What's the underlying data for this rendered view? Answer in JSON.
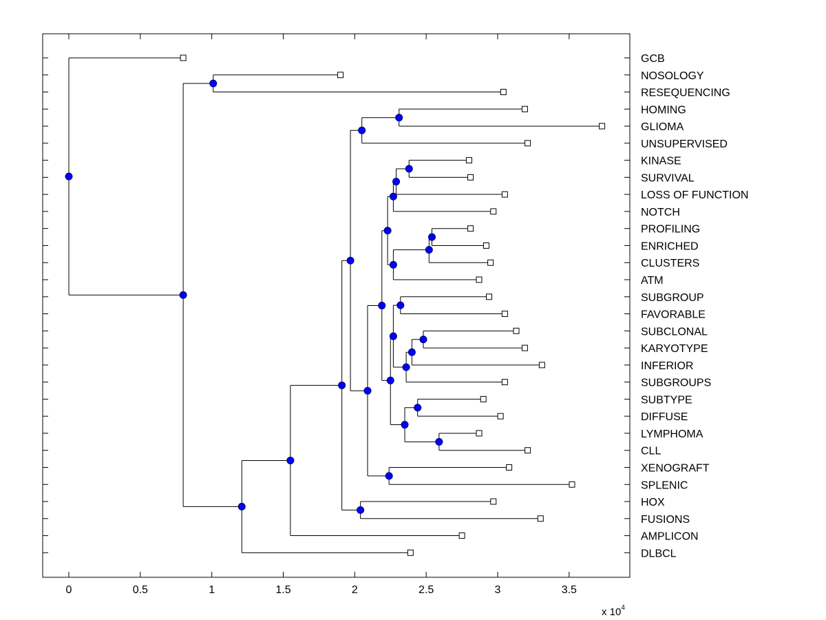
{
  "chart_data": {
    "type": "dendrogram",
    "orientation": "horizontal",
    "x_axis": {
      "ticks": [
        0,
        0.5,
        1,
        1.5,
        2,
        2.5,
        3,
        3.5
      ],
      "tick_labels": [
        "0",
        "0.5",
        "1",
        "1.5",
        "2",
        "2.5",
        "3",
        "3.5"
      ],
      "range": [
        -0.18,
        3.91
      ],
      "multiplier_label": "x 10",
      "multiplier_exponent": "4"
    },
    "leaves": [
      {
        "label": "GCB",
        "x": 0.8
      },
      {
        "label": "NOSOLOGY",
        "x": 1.9
      },
      {
        "label": "RESEQUENCING",
        "x": 3.04
      },
      {
        "label": "HOMING",
        "x": 3.19
      },
      {
        "label": "GLIOMA",
        "x": 3.73
      },
      {
        "label": "UNSUPERVISED",
        "x": 3.21
      },
      {
        "label": "KINASE",
        "x": 2.8
      },
      {
        "label": "SURVIVAL",
        "x": 2.81
      },
      {
        "label": "LOSS OF FUNCTION",
        "x": 3.05
      },
      {
        "label": "NOTCH",
        "x": 2.97
      },
      {
        "label": "PROFILING",
        "x": 2.81
      },
      {
        "label": "ENRICHED",
        "x": 2.92
      },
      {
        "label": "CLUSTERS",
        "x": 2.95
      },
      {
        "label": "ATM",
        "x": 2.87
      },
      {
        "label": "SUBGROUP",
        "x": 2.94
      },
      {
        "label": "FAVORABLE",
        "x": 3.05
      },
      {
        "label": "SUBCLONAL",
        "x": 3.13
      },
      {
        "label": "KARYOTYPE",
        "x": 3.19
      },
      {
        "label": "INFERIOR",
        "x": 3.31
      },
      {
        "label": "SUBGROUPS",
        "x": 3.05
      },
      {
        "label": "SUBTYPE",
        "x": 2.9
      },
      {
        "label": "DIFFUSE",
        "x": 3.02
      },
      {
        "label": "LYMPHOMA",
        "x": 2.87
      },
      {
        "label": "CLL",
        "x": 3.21
      },
      {
        "label": "XENOGRAFT",
        "x": 3.08
      },
      {
        "label": "SPLENIC",
        "x": 3.52
      },
      {
        "label": "HOX",
        "x": 2.97
      },
      {
        "label": "FUSIONS",
        "x": 3.3
      },
      {
        "label": "AMPLICON",
        "x": 2.75
      },
      {
        "label": "DLBCL",
        "x": 2.39
      }
    ],
    "nodes": [
      {
        "id": "N_pk",
        "x": 2.54,
        "children": [
          "PROFILING",
          "ENRICHED"
        ]
      },
      {
        "id": "N_ks",
        "x": 2.38,
        "children": [
          "KINASE",
          "SURVIVAL"
        ]
      },
      {
        "id": "N_hg",
        "x": 2.31,
        "children": [
          "HOMING",
          "GLIOMA"
        ]
      },
      {
        "id": "N_nr",
        "x": 1.01,
        "children": [
          "NOSOLOGY",
          "RESEQUENCING"
        ]
      },
      {
        "id": "N_sk",
        "x": 2.48,
        "children": [
          "SUBCLONAL",
          "KARYOTYPE"
        ]
      },
      {
        "id": "N_sd",
        "x": 2.44,
        "children": [
          "SUBTYPE",
          "DIFFUSE"
        ]
      },
      {
        "id": "N_lc",
        "x": 2.59,
        "children": [
          "LYMPHOMA",
          "CLL"
        ]
      },
      {
        "id": "N_pec",
        "x": 2.52,
        "children": [
          "N_pk",
          "CLUSTERS"
        ]
      },
      {
        "id": "N_ksl",
        "x": 2.29,
        "children": [
          "N_ks",
          "LOSS OF FUNCTION"
        ]
      },
      {
        "id": "N_ski",
        "x": 2.4,
        "children": [
          "N_sk",
          "INFERIOR"
        ]
      },
      {
        "id": "N_ksln",
        "x": 2.27,
        "children": [
          "N_ksl",
          "NOTCH"
        ]
      },
      {
        "id": "N_peca",
        "x": 2.27,
        "children": [
          "N_pec",
          "ATM"
        ]
      },
      {
        "id": "N_sf",
        "x": 2.32,
        "children": [
          "SUBGROUP",
          "FAVORABLE"
        ]
      },
      {
        "id": "N_skis",
        "x": 2.36,
        "children": [
          "N_ski",
          "SUBGROUPS"
        ]
      },
      {
        "id": "N_sdlc",
        "x": 2.35,
        "children": [
          "N_sd",
          "N_lc"
        ]
      },
      {
        "id": "N_sfsk",
        "x": 2.27,
        "children": [
          "N_sf",
          "N_skis"
        ]
      },
      {
        "id": "N_k2",
        "x": 2.23,
        "children": [
          "N_ksln",
          "N_peca"
        ]
      },
      {
        "id": "N_s2",
        "x": 2.25,
        "children": [
          "N_sfsk",
          "N_sdlc"
        ]
      },
      {
        "id": "N_hgu",
        "x": 2.05,
        "children": [
          "N_hg",
          "UNSUPERVISED"
        ]
      },
      {
        "id": "N_xs",
        "x": 2.24,
        "children": [
          "XENOGRAFT",
          "SPLENIC"
        ]
      },
      {
        "id": "N_ks_all",
        "x": 2.19,
        "children": [
          "N_k2",
          "N_s2"
        ]
      },
      {
        "id": "N_kx",
        "x": 2.09,
        "children": [
          "N_ks_all",
          "N_xs"
        ]
      },
      {
        "id": "N_top",
        "x": 1.97,
        "children": [
          "N_hgu",
          "N_kx"
        ]
      },
      {
        "id": "N_hf",
        "x": 2.04,
        "children": [
          "HOX",
          "FUSIONS"
        ]
      },
      {
        "id": "N_big",
        "x": 1.91,
        "children": [
          "N_top",
          "N_hf"
        ]
      },
      {
        "id": "N_amp",
        "x": 1.55,
        "children": [
          "N_big",
          "AMPLICON"
        ]
      },
      {
        "id": "N_dl",
        "x": 1.21,
        "children": [
          "N_amp",
          "DLBCL"
        ]
      },
      {
        "id": "N_main",
        "x": 0.8,
        "children": [
          "N_nr",
          "N_dl"
        ]
      },
      {
        "id": "N_root",
        "x": 0.0,
        "children": [
          "GCB",
          "N_main"
        ]
      }
    ],
    "colors": {
      "line": "#000000",
      "node_fill": "#0000ff",
      "node_stroke": "#00006e",
      "leaf_marker_fill": "#ffffff",
      "leaf_marker_stroke": "#000000"
    }
  }
}
